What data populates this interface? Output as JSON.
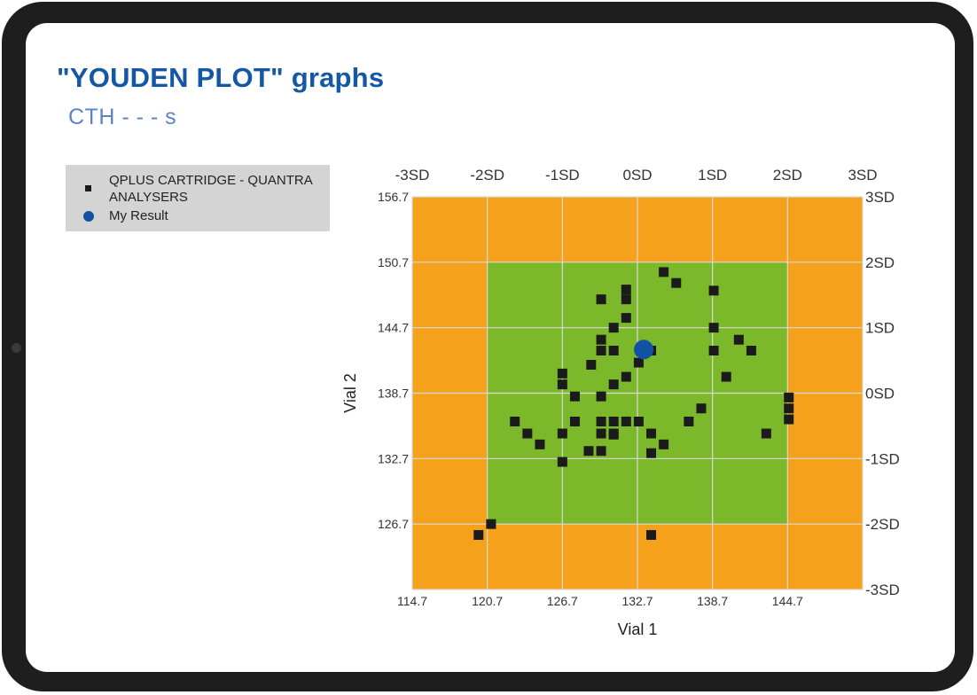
{
  "title": "\"YOUDEN PLOT\" graphs",
  "subtitle": "CTH - - - s",
  "legend": {
    "items": [
      {
        "label": "QPLUS CARTRIDGE - QUANTRA ANALYSERS",
        "marker": "square",
        "color": "#1b1b1b"
      },
      {
        "label": "My Result",
        "marker": "circle",
        "color": "#1252a3"
      }
    ]
  },
  "colors": {
    "outer_zone": "#f5a11c",
    "inner_zone": "#7cb92a",
    "grid": "#d9d9d9",
    "point": "#1b1b1b",
    "my_result": "#1252a3"
  },
  "chart_data": {
    "type": "scatter",
    "title": "\"YOUDEN PLOT\" graphs",
    "xlabel": "Vial 1",
    "ylabel": "Vial 2",
    "xlim": [
      114.7,
      150.7
    ],
    "ylim": [
      120.7,
      156.7
    ],
    "x_ticks": [
      114.7,
      120.7,
      126.7,
      132.7,
      138.7,
      144.7
    ],
    "y_ticks": [
      126.7,
      132.7,
      138.7,
      144.7,
      150.7,
      156.7
    ],
    "top_sd_labels": [
      "-3SD",
      "-2SD",
      "-1SD",
      "0SD",
      "1SD",
      "2SD",
      "3SD"
    ],
    "right_sd_labels": [
      "3SD",
      "2SD",
      "1SD",
      "0SD",
      "-1SD",
      "-2SD",
      "-3SD"
    ],
    "mean": {
      "x": 132.7,
      "y": 138.7
    },
    "sd": {
      "x": 6.0,
      "y": 6.0
    },
    "zones": [
      {
        "name": "outside-2SD",
        "color": "#f5a11c",
        "x_range": [
          114.7,
          150.7
        ],
        "y_range": [
          120.7,
          156.7
        ]
      },
      {
        "name": "within-2SD",
        "color": "#7cb92a",
        "x_range": [
          120.7,
          144.7
        ],
        "y_range": [
          126.7,
          150.7
        ]
      }
    ],
    "series": [
      {
        "name": "QPLUS CARTRIDGE - QUANTRA ANALYSERS",
        "marker": "square",
        "points": [
          [
            120.0,
            125.7
          ],
          [
            121.0,
            126.7
          ],
          [
            122.9,
            136.1
          ],
          [
            123.9,
            135.0
          ],
          [
            124.9,
            134.0
          ],
          [
            126.7,
            135.0
          ],
          [
            127.7,
            136.1
          ],
          [
            126.7,
            139.5
          ],
          [
            126.7,
            140.5
          ],
          [
            127.7,
            138.4
          ],
          [
            126.7,
            132.4
          ],
          [
            129.0,
            141.3
          ],
          [
            128.8,
            133.4
          ],
          [
            129.8,
            133.4
          ],
          [
            129.8,
            135.0
          ],
          [
            130.8,
            135.0
          ],
          [
            129.8,
            136.1
          ],
          [
            130.8,
            136.1
          ],
          [
            130.8,
            134.9
          ],
          [
            129.8,
            138.4
          ],
          [
            130.8,
            139.5
          ],
          [
            131.8,
            140.2
          ],
          [
            131.8,
            136.1
          ],
          [
            132.8,
            136.1
          ],
          [
            133.8,
            135.0
          ],
          [
            134.8,
            134.0
          ],
          [
            133.8,
            133.2
          ],
          [
            133.8,
            125.7
          ],
          [
            129.8,
            142.6
          ],
          [
            130.8,
            142.6
          ],
          [
            129.8,
            143.6
          ],
          [
            130.8,
            144.7
          ],
          [
            131.8,
            145.6
          ],
          [
            129.8,
            147.3
          ],
          [
            131.8,
            147.3
          ],
          [
            131.8,
            148.2
          ],
          [
            132.8,
            141.5
          ],
          [
            133.8,
            142.6
          ],
          [
            134.8,
            149.8
          ],
          [
            135.8,
            148.8
          ],
          [
            137.8,
            137.3
          ],
          [
            136.8,
            136.1
          ],
          [
            138.8,
            148.1
          ],
          [
            138.8,
            144.7
          ],
          [
            138.8,
            142.6
          ],
          [
            139.8,
            140.2
          ],
          [
            140.8,
            143.6
          ],
          [
            141.8,
            142.6
          ],
          [
            143.0,
            135.0
          ],
          [
            144.8,
            137.3
          ],
          [
            144.8,
            136.3
          ],
          [
            144.8,
            138.3
          ]
        ]
      },
      {
        "name": "My Result",
        "marker": "circle",
        "points": [
          [
            133.2,
            142.7
          ]
        ]
      }
    ]
  }
}
